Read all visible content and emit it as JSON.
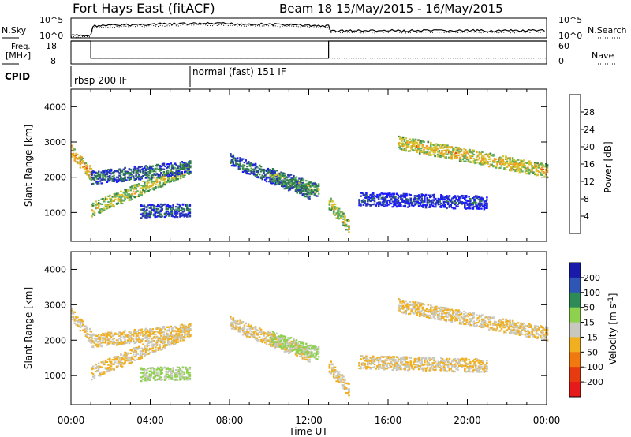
{
  "header": {
    "site": "Fort Hays East (fitACF)",
    "beam": "Beam 18  15/May/2015 - 16/May/2015"
  },
  "nsky_panel": {
    "left_label": "N.Sky",
    "right_label": "N.Search",
    "left_ticks": [
      "10^5",
      "10^0"
    ],
    "right_ticks": [
      "10^5",
      "10^0"
    ]
  },
  "freq_panel": {
    "left_label_line1": "Freq.",
    "left_label_line2": "[MHz]",
    "right_label": "Nave",
    "left_ticks": [
      "18",
      "8"
    ],
    "right_ticks": [
      "60",
      "0"
    ],
    "freq_levels": [
      {
        "t0": 0.0,
        "t1": 1.0,
        "mhz": 18
      },
      {
        "t0": 1.0,
        "t1": 13.0,
        "mhz": 10.5
      },
      {
        "t0": 13.0,
        "t1": 24.0,
        "mhz": 18
      }
    ],
    "nave": {
      "t0": 1.0,
      "t1": 24.0,
      "value": 15
    }
  },
  "cpid": {
    "label": "CPID",
    "segments": [
      {
        "start": 0.0,
        "label": "rbsp 200 IF"
      },
      {
        "start": 6.0,
        "label": "normal (fast) 151 IF"
      }
    ]
  },
  "power_panel": {
    "ylabel": "Slant Range [km]",
    "yticks": [
      "1000",
      "2000",
      "3000",
      "4000"
    ],
    "colorbar": {
      "title": "Power [dB]",
      "ticks": [
        "4",
        "8",
        "12",
        "16",
        "20",
        "24",
        "28"
      ],
      "colors": [
        "#1a1aff",
        "#2b3aa8",
        "#2f7d4a",
        "#5fae5f",
        "#d7c32b",
        "#f09a1f",
        "#e3501c",
        "#e61a1a"
      ]
    }
  },
  "velocity_panel": {
    "ylabel": "Slant Range [km]",
    "yticks": [
      "1000",
      "2000",
      "3000",
      "4000"
    ],
    "colorbar": {
      "title": "Velocity [m s^-1]",
      "ticks": [
        "200",
        "100",
        "50",
        "15",
        "-15",
        "-50",
        "-100",
        "-200"
      ],
      "colors": [
        "#1a1aaa",
        "#2f55b5",
        "#2e8b57",
        "#8ed14f",
        "#c8c8c0",
        "#f0b020",
        "#f07a10",
        "#e63a10",
        "#e61a1a"
      ]
    }
  },
  "time_axis": {
    "xlabel": "Time UT",
    "ticks": [
      "00:00",
      "04:00",
      "08:00",
      "12:00",
      "16:00",
      "20:00",
      "00:00"
    ]
  },
  "chart_data": {
    "type": "heatmap",
    "x_range_hours": [
      0,
      24
    ],
    "y_range_km": [
      180,
      4500
    ],
    "backscatter_bands": [
      {
        "name": "",
        "t0": 0.0,
        "t1": 1.0,
        "r0": 2750,
        "r1": 2100,
        "power_db": 22,
        "velocity": -15
      },
      {
        "name": "",
        "t0": 1.0,
        "t1": 6.0,
        "r0": 1100,
        "r1": 2300,
        "power_db": 18,
        "velocity": -15
      },
      {
        "name": "",
        "t0": 1.0,
        "t1": 6.0,
        "r0": 2000,
        "r1": 2300,
        "power_db": 10,
        "velocity": -15
      },
      {
        "name": "",
        "t0": 3.5,
        "t1": 6.0,
        "r0": 1050,
        "r1": 1100,
        "power_db": 8,
        "velocity": 20
      },
      {
        "name": "",
        "t0": 8.0,
        "t1": 12.0,
        "r0": 2500,
        "r1": 1600,
        "power_db": 10,
        "velocity": -15
      },
      {
        "name": "",
        "t0": 10.0,
        "t1": 12.5,
        "r0": 2100,
        "r1": 1650,
        "power_db": 14,
        "velocity": 20
      },
      {
        "name": "",
        "t0": 13.0,
        "t1": 14.0,
        "r0": 1300,
        "r1": 600,
        "power_db": 18,
        "velocity": -15
      },
      {
        "name": "",
        "t0": 14.5,
        "t1": 21.0,
        "r0": 1400,
        "r1": 1300,
        "power_db": 6,
        "velocity": -15
      },
      {
        "name": "",
        "t0": 16.5,
        "t1": 24.0,
        "r0": 3000,
        "r1": 2200,
        "power_db": 20,
        "velocity": -15
      }
    ]
  }
}
